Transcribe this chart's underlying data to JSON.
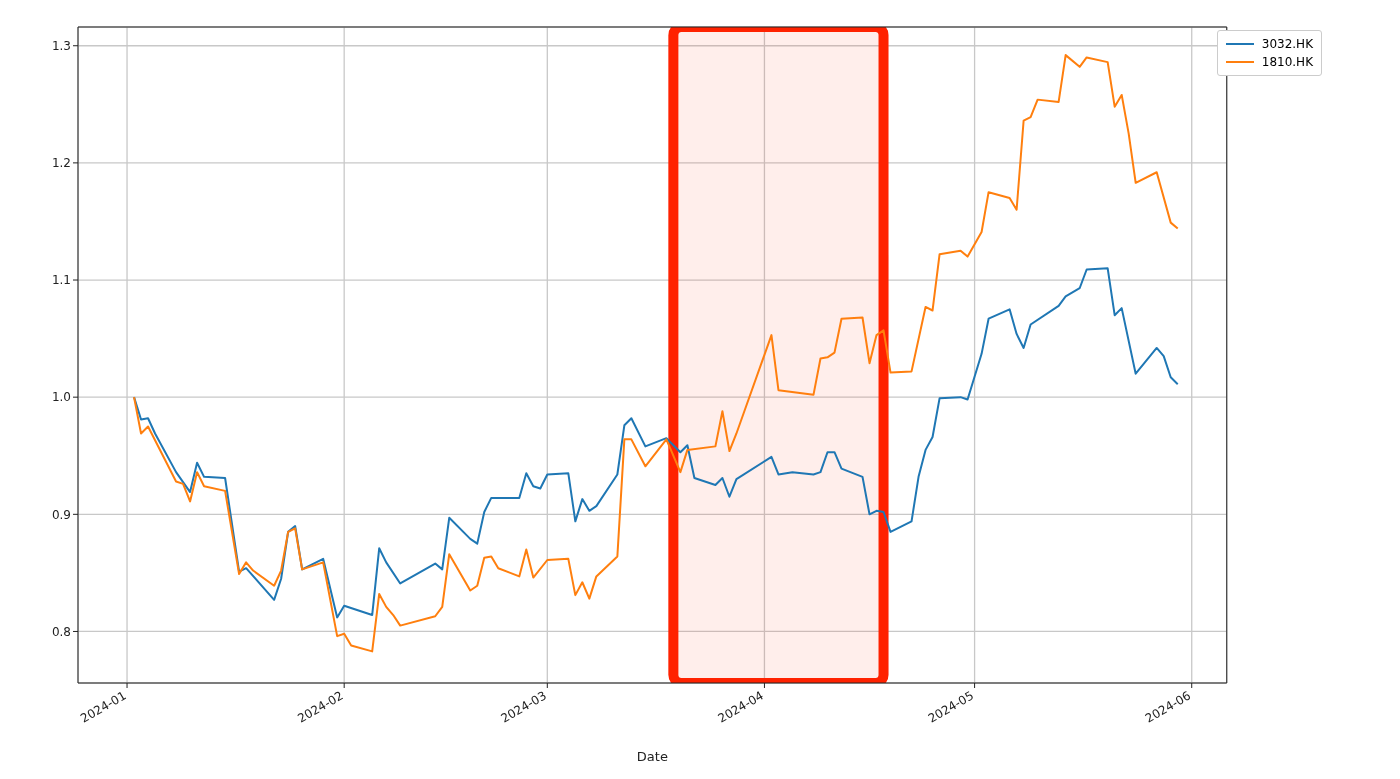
{
  "chart_data": {
    "type": "line",
    "xlabel": "Date",
    "legend": "top right",
    "grid": true,
    "line_style": "solid",
    "marker": "none",
    "xlim": [
      "2023-12-25",
      "2024-06-06"
    ],
    "xticks": [
      {
        "value": "2024-01-01",
        "label": "2024-01"
      },
      {
        "value": "2024-02-01",
        "label": "2024-02"
      },
      {
        "value": "2024-03-01",
        "label": "2024-03"
      },
      {
        "value": "2024-04-01",
        "label": "2024-04"
      },
      {
        "value": "2024-05-01",
        "label": "2024-05"
      },
      {
        "value": "2024-06-01",
        "label": "2024-06"
      }
    ],
    "ylim": [
      0.756,
      1.316
    ],
    "yticks": [
      0.8,
      0.9,
      {
        "value": 1,
        "label": "1.0"
      },
      1.1,
      1.2,
      1.3
    ],
    "bands": [
      {
        "axis": "x",
        "from": "2024-03-19",
        "to": "2024-04-18",
        "color": "#ff2200"
      }
    ],
    "series": [
      {
        "name": "3032.HK",
        "color": "#1f77b4",
        "x": [
          "2024-01-02",
          "2024-01-03",
          "2024-01-04",
          "2024-01-05",
          "2024-01-08",
          "2024-01-10",
          "2024-01-11",
          "2024-01-12",
          "2024-01-15",
          "2024-01-17",
          "2024-01-18",
          "2024-01-22",
          "2024-01-23",
          "2024-01-24",
          "2024-01-25",
          "2024-01-26",
          "2024-01-29",
          "2024-01-31",
          "2024-02-01",
          "2024-02-05",
          "2024-02-06",
          "2024-02-07",
          "2024-02-09",
          "2024-02-14",
          "2024-02-15",
          "2024-02-16",
          "2024-02-19",
          "2024-02-20",
          "2024-02-21",
          "2024-02-22",
          "2024-02-26",
          "2024-02-27",
          "2024-02-28",
          "2024-02-29",
          "2024-03-01",
          "2024-03-04",
          "2024-03-05",
          "2024-03-06",
          "2024-03-07",
          "2024-03-08",
          "2024-03-11",
          "2024-03-12",
          "2024-03-13",
          "2024-03-15",
          "2024-03-18",
          "2024-03-20",
          "2024-03-21",
          "2024-03-22",
          "2024-03-25",
          "2024-03-26",
          "2024-03-27",
          "2024-03-28",
          "2024-04-02",
          "2024-04-03",
          "2024-04-05",
          "2024-04-08",
          "2024-04-09",
          "2024-04-10",
          "2024-04-11",
          "2024-04-12",
          "2024-04-15",
          "2024-04-16",
          "2024-04-17",
          "2024-04-18",
          "2024-04-19",
          "2024-04-22",
          "2024-04-23",
          "2024-04-24",
          "2024-04-25",
          "2024-04-26",
          "2024-04-29",
          "2024-04-30",
          "2024-05-02",
          "2024-05-03",
          "2024-05-06",
          "2024-05-07",
          "2024-05-08",
          "2024-05-09",
          "2024-05-13",
          "2024-05-14",
          "2024-05-16",
          "2024-05-17",
          "2024-05-20",
          "2024-05-21",
          "2024-05-22",
          "2024-05-24",
          "2024-05-27",
          "2024-05-28",
          "2024-05-29",
          "2024-05-30"
        ],
        "values": [
          1.0,
          0.981,
          0.982,
          0.969,
          0.936,
          0.919,
          0.944,
          0.932,
          0.931,
          0.851,
          0.854,
          0.827,
          0.845,
          0.885,
          0.89,
          0.853,
          0.862,
          0.812,
          0.822,
          0.814,
          0.871,
          0.859,
          0.841,
          0.858,
          0.853,
          0.897,
          0.879,
          0.875,
          0.902,
          0.914,
          0.914,
          0.935,
          0.924,
          0.922,
          0.934,
          0.935,
          0.894,
          0.913,
          0.903,
          0.907,
          0.934,
          0.976,
          0.982,
          0.958,
          0.965,
          0.953,
          0.959,
          0.931,
          0.925,
          0.931,
          0.915,
          0.93,
          0.949,
          0.934,
          0.936,
          0.934,
          0.936,
          0.953,
          0.953,
          0.939,
          0.932,
          0.9,
          0.903,
          0.902,
          0.885,
          0.894,
          0.932,
          0.955,
          0.966,
          0.999,
          1.0,
          0.998,
          1.037,
          1.067,
          1.075,
          1.054,
          1.042,
          1.062,
          1.078,
          1.086,
          1.093,
          1.109,
          1.11,
          1.07,
          1.076,
          1.02,
          1.042,
          1.035,
          1.017,
          1.011
        ]
      },
      {
        "name": "1810.HK",
        "color": "#ff7f0e",
        "x": [
          "2024-01-02",
          "2024-01-03",
          "2024-01-04",
          "2024-01-08",
          "2024-01-09",
          "2024-01-10",
          "2024-01-11",
          "2024-01-12",
          "2024-01-15",
          "2024-01-17",
          "2024-01-18",
          "2024-01-19",
          "2024-01-22",
          "2024-01-23",
          "2024-01-24",
          "2024-01-25",
          "2024-01-26",
          "2024-01-29",
          "2024-01-31",
          "2024-02-01",
          "2024-02-02",
          "2024-02-05",
          "2024-02-06",
          "2024-02-07",
          "2024-02-08",
          "2024-02-09",
          "2024-02-14",
          "2024-02-15",
          "2024-02-16",
          "2024-02-19",
          "2024-02-20",
          "2024-02-21",
          "2024-02-22",
          "2024-02-23",
          "2024-02-26",
          "2024-02-27",
          "2024-02-28",
          "2024-03-01",
          "2024-03-04",
          "2024-03-05",
          "2024-03-06",
          "2024-03-07",
          "2024-03-08",
          "2024-03-11",
          "2024-03-12",
          "2024-03-13",
          "2024-03-15",
          "2024-03-18",
          "2024-03-20",
          "2024-03-21",
          "2024-03-25",
          "2024-03-26",
          "2024-03-27",
          "2024-03-28",
          "2024-04-02",
          "2024-04-03",
          "2024-04-08",
          "2024-04-09",
          "2024-04-10",
          "2024-04-11",
          "2024-04-12",
          "2024-04-15",
          "2024-04-16",
          "2024-04-17",
          "2024-04-18",
          "2024-04-19",
          "2024-04-22",
          "2024-04-24",
          "2024-04-25",
          "2024-04-26",
          "2024-04-29",
          "2024-04-30",
          "2024-05-02",
          "2024-05-03",
          "2024-05-06",
          "2024-05-07",
          "2024-05-08",
          "2024-05-09",
          "2024-05-10",
          "2024-05-13",
          "2024-05-14",
          "2024-05-16",
          "2024-05-17",
          "2024-05-20",
          "2024-05-21",
          "2024-05-22",
          "2024-05-23",
          "2024-05-24",
          "2024-05-27",
          "2024-05-29",
          "2024-05-30"
        ],
        "values": [
          1.0,
          0.969,
          0.975,
          0.928,
          0.926,
          0.911,
          0.936,
          0.924,
          0.92,
          0.849,
          0.859,
          0.852,
          0.839,
          0.852,
          0.885,
          0.888,
          0.853,
          0.859,
          0.796,
          0.798,
          0.788,
          0.783,
          0.832,
          0.821,
          0.814,
          0.805,
          0.813,
          0.821,
          0.866,
          0.835,
          0.839,
          0.863,
          0.864,
          0.854,
          0.847,
          0.87,
          0.846,
          0.861,
          0.862,
          0.831,
          0.842,
          0.828,
          0.847,
          0.864,
          0.964,
          0.964,
          0.941,
          0.964,
          0.936,
          0.955,
          0.958,
          0.988,
          0.954,
          0.969,
          1.053,
          1.006,
          1.002,
          1.033,
          1.034,
          1.038,
          1.067,
          1.068,
          1.029,
          1.053,
          1.057,
          1.021,
          1.022,
          1.077,
          1.074,
          1.122,
          1.125,
          1.12,
          1.141,
          1.175,
          1.17,
          1.16,
          1.236,
          1.239,
          1.254,
          1.252,
          1.292,
          1.282,
          1.29,
          1.286,
          1.248,
          1.258,
          1.225,
          1.183,
          1.192,
          1.149,
          1.144
        ]
      }
    ]
  }
}
